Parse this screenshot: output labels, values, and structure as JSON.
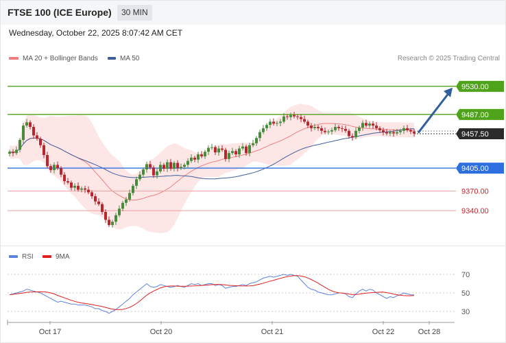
{
  "header": {
    "title": "FTSE 100 (ICE Europe)",
    "timeframe": "30 MIN"
  },
  "datetime": "Wednesday, October 22, 2025 8:07:42 AM CET",
  "legend": {
    "bollinger": "MA 20 + Bollinger Bands",
    "ma50": "MA 50",
    "rsi": "RSI",
    "ma9": "9MA"
  },
  "credit": "Research © 2025 Trading Central",
  "colors": {
    "up": "#4a8a3c",
    "down": "#b9262e",
    "bb_fill": "#fde3e3",
    "ma20": "#f08080",
    "ma50": "#3d5f9c",
    "resistance": "#4fa31a",
    "pivot": "#2e6fe0",
    "support": "#f2a8a8",
    "rsi": "#5b82e0",
    "ma9": "#e0201e",
    "arrow": "#2f5f9e"
  },
  "chart_data": {
    "type": "candlestick",
    "ylim": [
      9295,
      9555
    ],
    "x_ticks": [
      "Oct 17",
      "Oct 20",
      "Oct 21",
      "Oct 22",
      "Oct 28"
    ],
    "levels": [
      {
        "label": "9530.00",
        "value": 9530,
        "kind": "resistance"
      },
      {
        "label": "9487.00",
        "value": 9487,
        "kind": "resistance"
      },
      {
        "label": "9457.50",
        "value": 9457.5,
        "kind": "last"
      },
      {
        "label": "9405.00",
        "value": 9405,
        "kind": "pivot"
      },
      {
        "label": "9370.00",
        "value": 9370,
        "kind": "support"
      },
      {
        "label": "9340.00",
        "value": 9340,
        "kind": "support"
      }
    ],
    "close": [
      9430,
      9428,
      9433,
      9448,
      9470,
      9475,
      9468,
      9455,
      9450,
      9440,
      9425,
      9408,
      9402,
      9410,
      9405,
      9395,
      9385,
      9383,
      9375,
      9378,
      9372,
      9374,
      9372,
      9368,
      9362,
      9354,
      9350,
      9338,
      9326,
      9318,
      9323,
      9333,
      9343,
      9352,
      9357,
      9367,
      9378,
      9388,
      9395,
      9403,
      9411,
      9406,
      9394,
      9400,
      9410,
      9404,
      9414,
      9404,
      9413,
      9405,
      9407,
      9410,
      9416,
      9421,
      9418,
      9426,
      9423,
      9430,
      9436,
      9437,
      9429,
      9435,
      9433,
      9419,
      9428,
      9431,
      9426,
      9435,
      9438,
      9428,
      9440,
      9443,
      9451,
      9460,
      9466,
      9471,
      9476,
      9473,
      9474,
      9476,
      9484,
      9483,
      9486,
      9484,
      9483,
      9480,
      9476,
      9470,
      9466,
      9468,
      9466,
      9462,
      9460,
      9461,
      9463,
      9468,
      9466,
      9465,
      9462,
      9454,
      9452,
      9462,
      9467,
      9474,
      9470,
      9473,
      9470,
      9466,
      9463,
      9460,
      9458,
      9460,
      9458,
      9460,
      9462,
      9466,
      9463,
      9461,
      9458
    ],
    "rsi": {
      "ylim": [
        20,
        80
      ],
      "ticks": [
        70,
        50,
        30
      ]
    },
    "rsi_values": [
      48,
      49,
      50,
      51,
      52,
      54,
      53,
      52,
      51,
      50,
      48,
      46,
      44,
      42,
      40,
      41,
      40,
      39,
      38,
      38,
      37,
      37,
      37,
      36,
      35,
      33,
      33,
      31,
      30,
      28,
      30,
      32,
      35,
      38,
      41,
      44,
      48,
      51,
      54,
      57,
      60,
      57,
      56,
      57,
      59,
      58,
      57,
      56,
      57,
      58,
      57,
      56,
      58,
      60,
      59,
      60,
      58,
      59,
      60,
      60,
      58,
      59,
      58,
      55,
      56,
      57,
      57,
      58,
      59,
      58,
      60,
      61,
      62,
      64,
      66,
      67,
      68,
      67,
      68,
      69,
      70,
      69,
      70,
      69,
      68,
      64,
      60,
      56,
      54,
      53,
      51,
      50,
      49,
      48,
      48,
      49,
      50,
      50,
      49,
      46,
      45,
      49,
      52,
      54,
      52,
      54,
      53,
      50,
      48,
      46,
      44,
      46,
      45,
      47,
      48,
      50,
      49,
      48,
      48
    ]
  }
}
